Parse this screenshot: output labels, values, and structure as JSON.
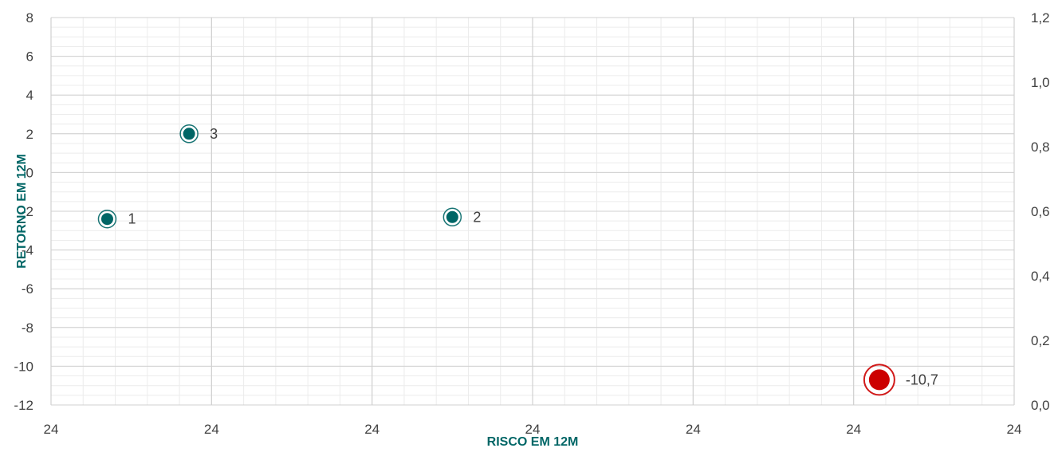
{
  "chart_data": {
    "type": "scatter",
    "title": "",
    "xlabel": "RISCO EM 12M",
    "ylabel": "RETORNO EM 12M",
    "x_tick_labels": [
      "24",
      "24",
      "24",
      "24",
      "24",
      "24",
      "24"
    ],
    "y_left_ticks": [
      "8",
      "6",
      "4",
      "2",
      "0",
      "-2",
      "-4",
      "-6",
      "-8",
      "-10",
      "-12"
    ],
    "y_left_range": [
      -12,
      8
    ],
    "y_right_ticks": [
      "1,2",
      "1,0",
      "0,8",
      "0,6",
      "0,4",
      "0,2",
      "0,0"
    ],
    "y_right_range": [
      0,
      1.2
    ],
    "x_range": [
      0,
      6
    ],
    "grid": true,
    "legend": "none",
    "colors": {
      "teal": "#006666",
      "red": "#cc0000",
      "axis_title": "#006666",
      "major_grid": "#d0d0d0",
      "minor_grid": "#ececec"
    },
    "points": [
      {
        "label": "1",
        "x": 0.35,
        "y": -2.4,
        "color": "#006666",
        "size": "small"
      },
      {
        "label": "3",
        "x": 0.86,
        "y": 2.0,
        "color": "#006666",
        "size": "small"
      },
      {
        "label": "2",
        "x": 2.5,
        "y": -2.3,
        "color": "#006666",
        "size": "small"
      },
      {
        "label": "-10,7",
        "x": 5.16,
        "y": -10.7,
        "color": "#cc0000",
        "size": "large"
      }
    ]
  }
}
